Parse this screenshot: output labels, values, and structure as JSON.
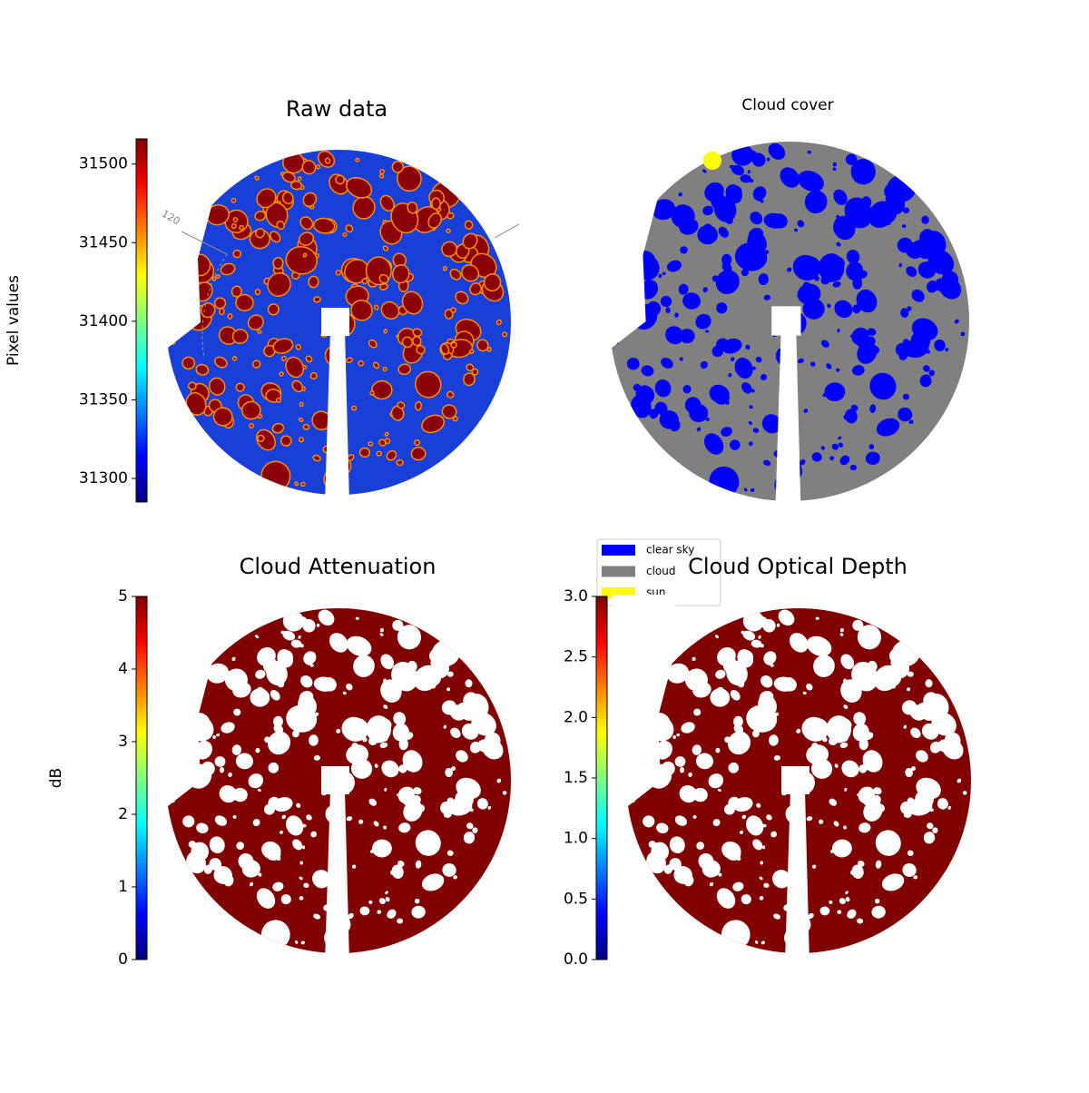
{
  "chart_data": [
    {
      "type": "image",
      "title": "Raw data",
      "colorbar_label": "Pixel values",
      "colormap": "jet",
      "clim": [
        31285,
        31516
      ],
      "cticks": [
        31300,
        31350,
        31400,
        31450,
        31500
      ],
      "annotation": "120"
    },
    {
      "type": "image",
      "title": "Cloud cover",
      "legend": [
        {
          "name": "clear sky",
          "color": "#0000ff"
        },
        {
          "name": "cloud",
          "color": "#808080"
        },
        {
          "name": "sun",
          "color": "#ffff00"
        }
      ]
    },
    {
      "type": "image",
      "title": "Cloud Attenuation",
      "colorbar_label": "dB",
      "colormap": "jet",
      "clim": [
        0,
        5
      ],
      "cticks": [
        0,
        1,
        2,
        3,
        4,
        5
      ]
    },
    {
      "type": "image",
      "title": "Cloud Optical Depth",
      "colormap": "jet",
      "clim": [
        0,
        3
      ],
      "cticks": [
        {
          "value": 0,
          "label": "0.0"
        },
        0.5,
        {
          "value": 1,
          "label": "1.0"
        },
        1.5,
        {
          "value": 2,
          "label": "2.0"
        },
        2.5,
        {
          "value": 3,
          "label": "3.0"
        }
      ]
    }
  ]
}
